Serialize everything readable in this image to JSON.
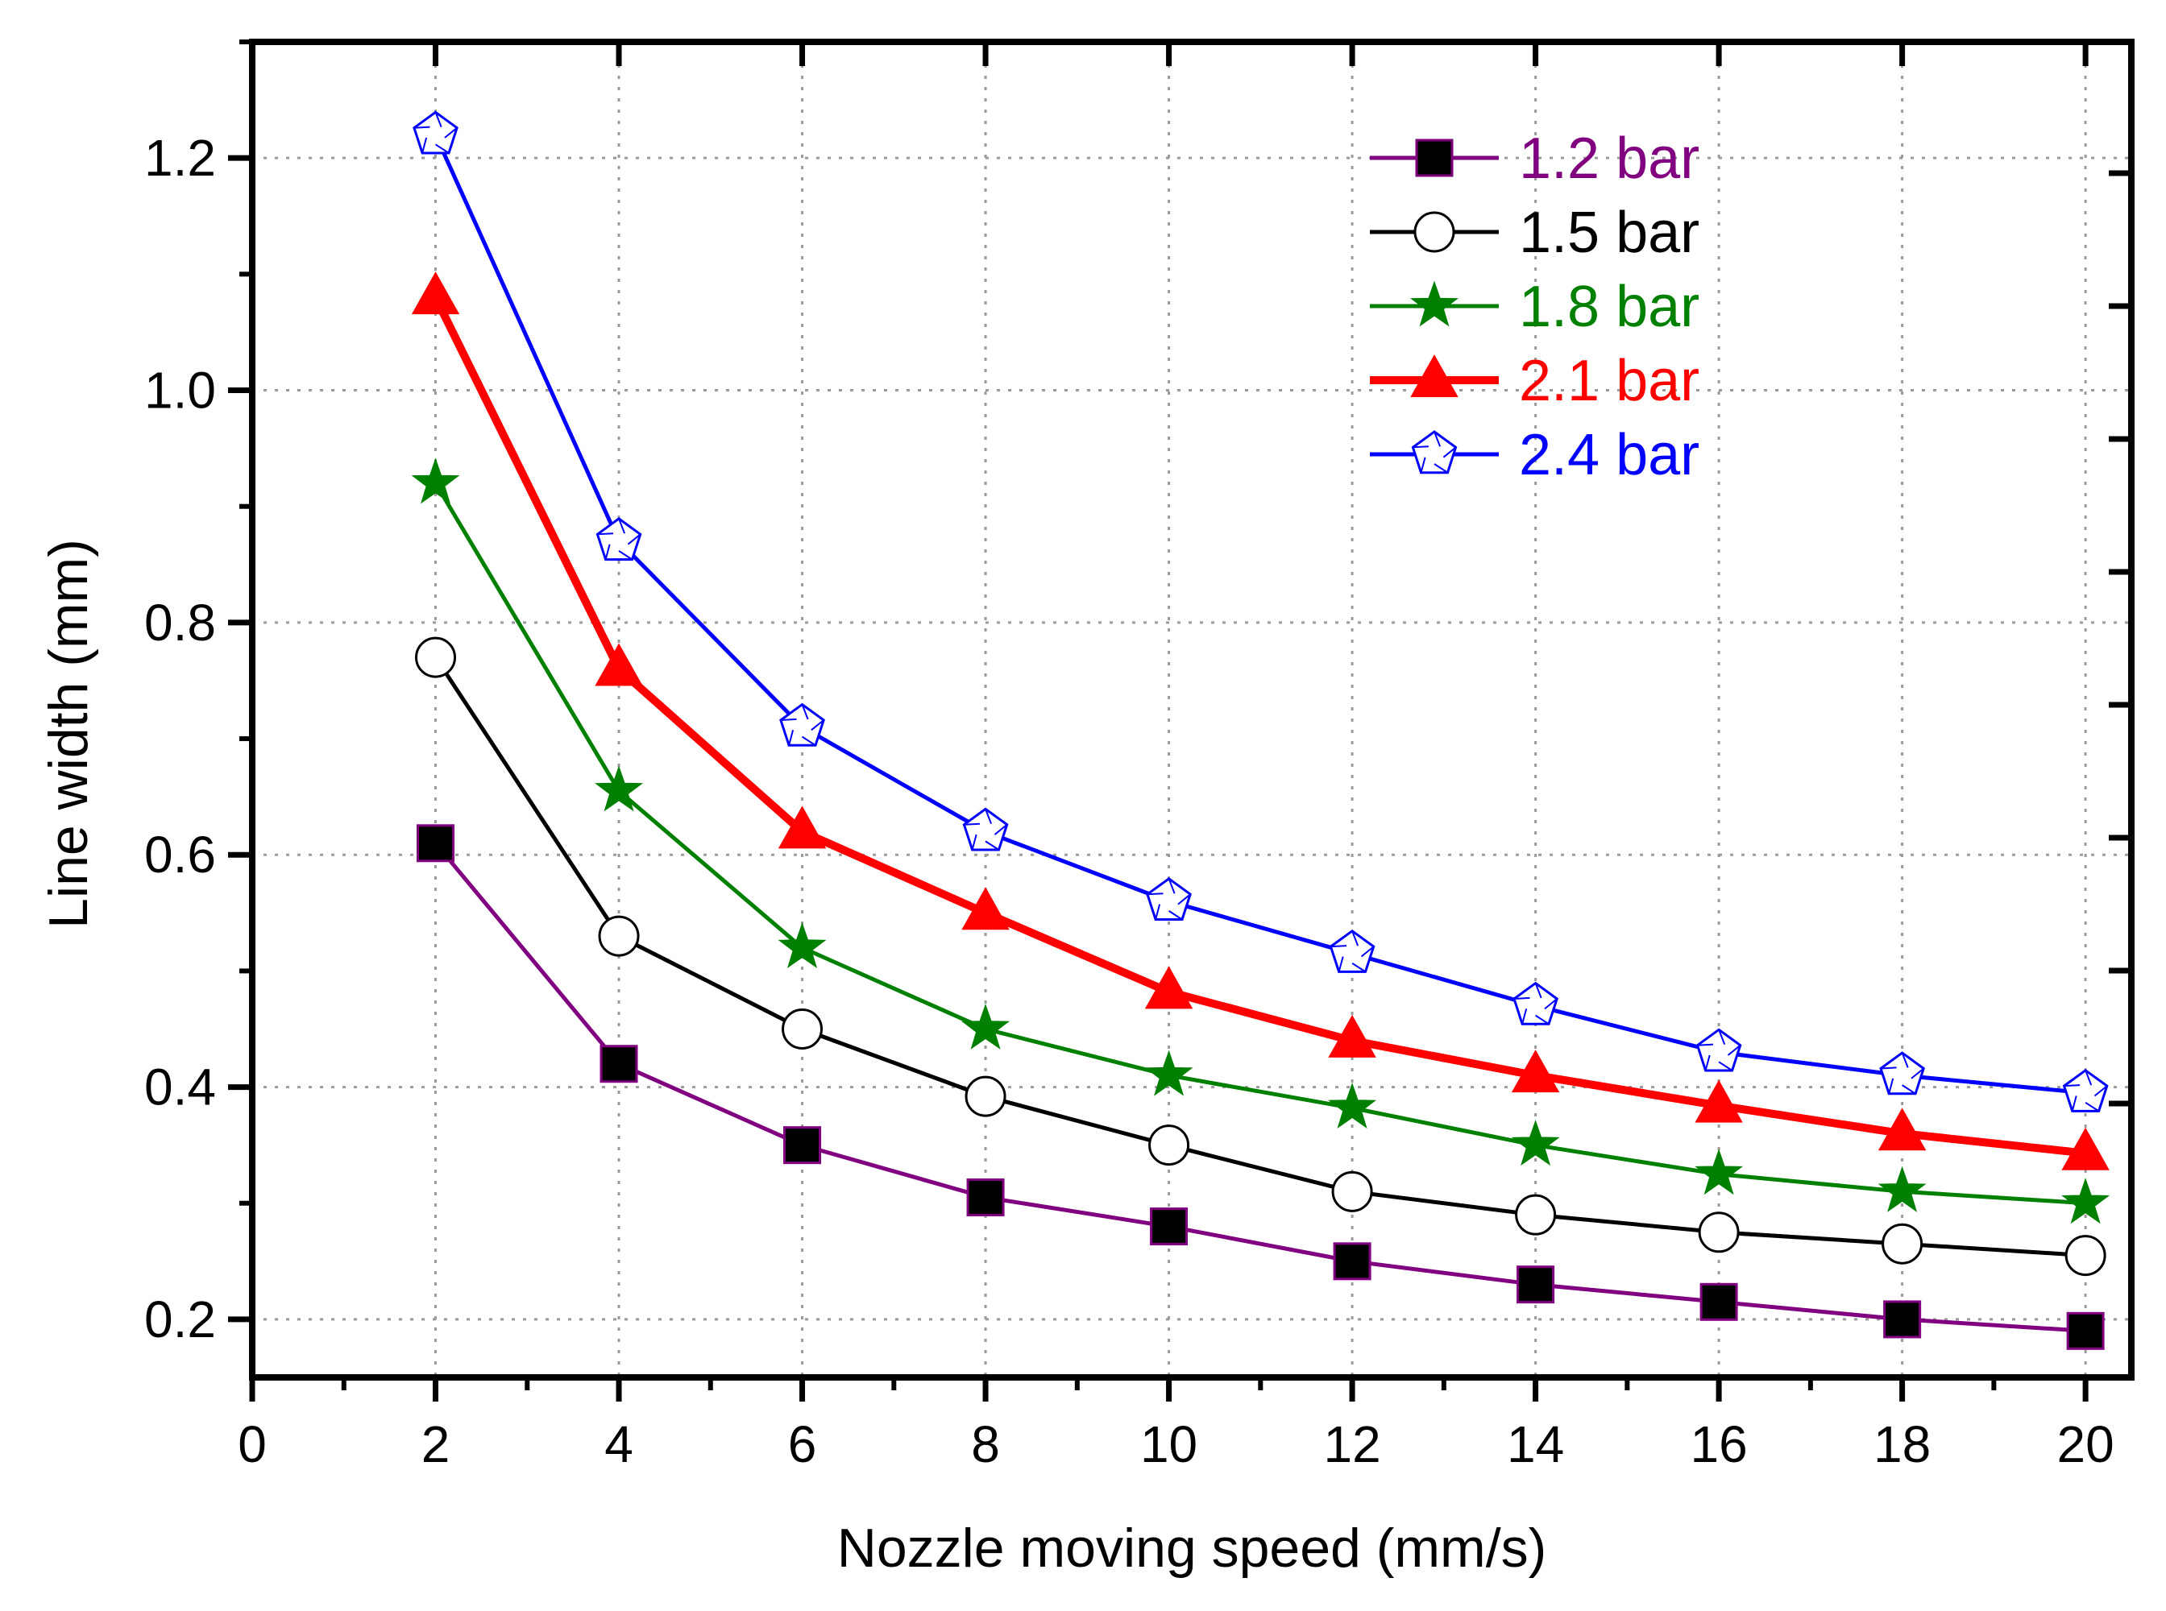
{
  "chart_data": {
    "type": "line",
    "title": "",
    "xlabel": "Nozzle moving speed (mm/s)",
    "ylabel": "Line width (mm)",
    "xlim": [
      0,
      20.5
    ],
    "ylim": [
      0.15,
      1.3
    ],
    "xticks": [
      0,
      2,
      4,
      6,
      8,
      10,
      12,
      14,
      16,
      18,
      20
    ],
    "xtick_labels": [
      "0",
      "2",
      "4",
      "6",
      "8",
      "10",
      "12",
      "14",
      "16",
      "18",
      "20"
    ],
    "yticks": [
      0.2,
      0.4,
      0.6,
      0.8,
      1.0,
      1.2
    ],
    "ytick_labels": [
      "0.2",
      "0.4",
      "0.6",
      "0.8",
      "1.0",
      "1.2"
    ],
    "grid": true,
    "legend_position": "top-right",
    "x": [
      2,
      4,
      6,
      8,
      10,
      12,
      14,
      16,
      18,
      20
    ],
    "series": [
      {
        "name": "1.2 bar",
        "color": "#800080",
        "marker": "square",
        "values": [
          0.61,
          0.42,
          0.35,
          0.305,
          0.28,
          0.25,
          0.23,
          0.215,
          0.2,
          0.19
        ]
      },
      {
        "name": "1.5 bar",
        "color": "#000000",
        "marker": "circle",
        "values": [
          0.77,
          0.53,
          0.45,
          0.392,
          0.35,
          0.31,
          0.29,
          0.275,
          0.265,
          0.255
        ]
      },
      {
        "name": "1.8 bar",
        "color": "#008000",
        "marker": "star",
        "values": [
          0.92,
          0.655,
          0.52,
          0.45,
          0.41,
          0.382,
          0.35,
          0.325,
          0.31,
          0.3
        ]
      },
      {
        "name": "2.1 bar",
        "color": "#ff0000",
        "marker": "triangle",
        "values": [
          1.08,
          0.76,
          0.62,
          0.55,
          0.482,
          0.44,
          0.41,
          0.384,
          0.36,
          0.343
        ]
      },
      {
        "name": "2.4 bar",
        "color": "#0000ff",
        "marker": "pentagon",
        "values": [
          1.22,
          0.87,
          0.71,
          0.62,
          0.56,
          0.515,
          0.47,
          0.43,
          0.41,
          0.395
        ]
      }
    ]
  }
}
